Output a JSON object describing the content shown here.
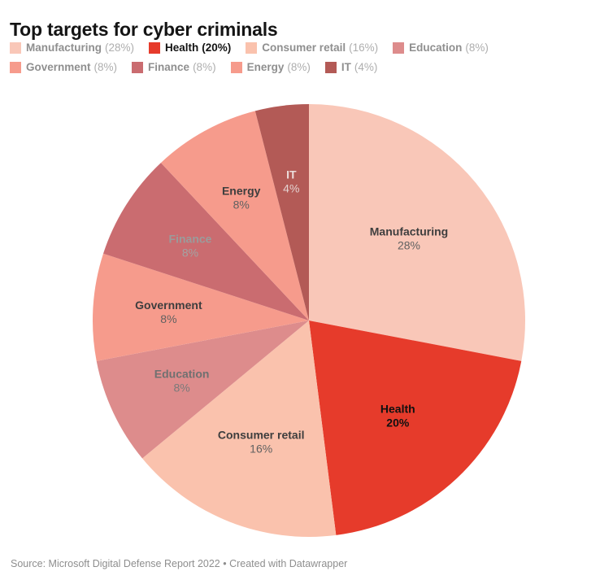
{
  "title": "Top targets for cyber criminals",
  "footer": {
    "source_text": "Source: Microsoft Digital Defense Report 2022",
    "separator": " • ",
    "attribution": "Created with Datawrapper"
  },
  "chart_data": {
    "type": "pie",
    "title": "Top targets for cyber criminals",
    "unit": "%",
    "start_angle_deg": 0,
    "direction": "clockwise",
    "legend_position": "top",
    "total": 100,
    "slices": [
      {
        "label": "Manufacturing",
        "value": 28,
        "color": "#f9c7b8",
        "emphasis": false,
        "label_color": "#3e3e3e",
        "pct_color": "#616161"
      },
      {
        "label": "Health",
        "value": 20,
        "color": "#e63b2b",
        "emphasis": true,
        "label_color": "#101010",
        "pct_color": "#101010"
      },
      {
        "label": "Consumer retail",
        "value": 16,
        "color": "#fac2ad",
        "emphasis": false,
        "label_color": "#3e3e3e",
        "pct_color": "#616161"
      },
      {
        "label": "Education",
        "value": 8,
        "color": "#dd8c8c",
        "emphasis": false,
        "label_color": "#707070",
        "pct_color": "#7a7a7a"
      },
      {
        "label": "Government",
        "value": 8,
        "color": "#f69b8c",
        "emphasis": false,
        "label_color": "#3e3e3e",
        "pct_color": "#616161"
      },
      {
        "label": "Finance",
        "value": 8,
        "color": "#ca6c70",
        "emphasis": false,
        "label_color": "#9b9b9b",
        "pct_color": "#a3a3a3"
      },
      {
        "label": "Energy",
        "value": 8,
        "color": "#f69b8c",
        "emphasis": false,
        "label_color": "#3e3e3e",
        "pct_color": "#616161"
      },
      {
        "label": "IT",
        "value": 4,
        "color": "#b35a56",
        "emphasis": false,
        "label_color": "#ecdedc",
        "pct_color": "#e4d2d0"
      }
    ]
  }
}
